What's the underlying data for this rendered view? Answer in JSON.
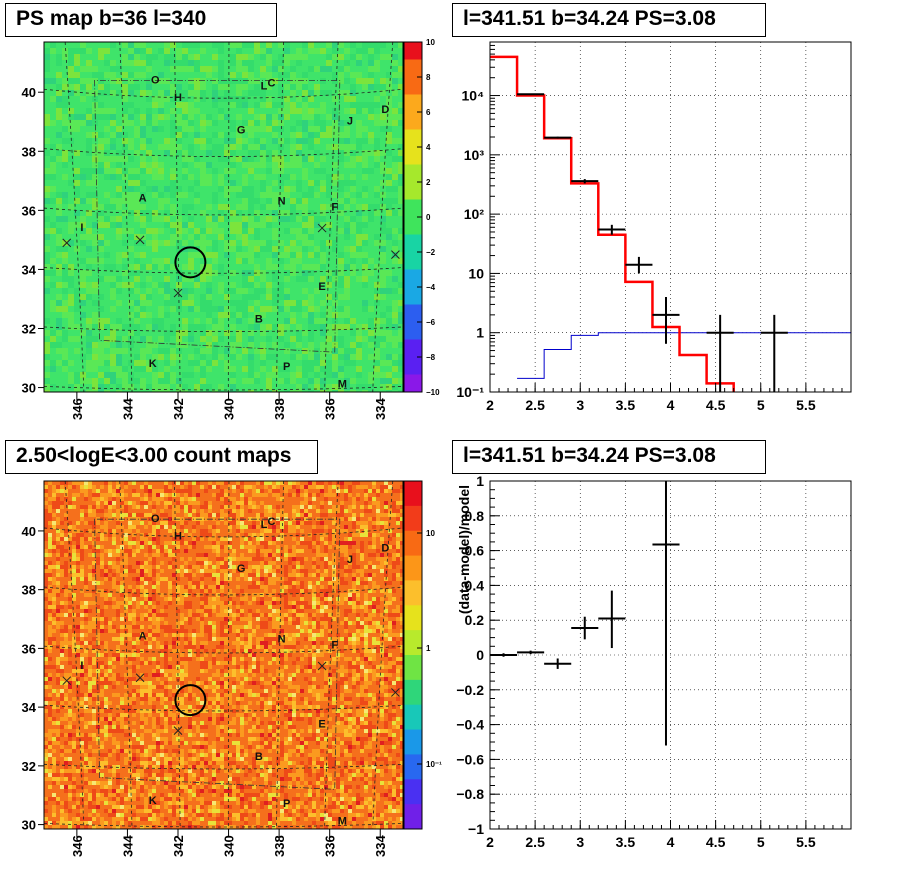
{
  "titles": {
    "tl": "PS map b=36 l=340",
    "tr": "l=341.51 b=34.24 PS=3.08",
    "bl": "2.50<logE<3.00 count maps",
    "br": "l=341.51 b=34.24 PS=3.08"
  },
  "map": {
    "x_ticks": [
      "346",
      "344",
      "342",
      "340",
      "338",
      "336",
      "334"
    ],
    "y_ticks": [
      "40",
      "38",
      "36",
      "34",
      "32",
      "30"
    ],
    "markers": [
      {
        "label": "O",
        "l": 342.9,
        "b": 40.3
      },
      {
        "label": "H",
        "l": 342.0,
        "b": 39.7
      },
      {
        "label": "L",
        "l": 338.6,
        "b": 40.1
      },
      {
        "label": "C",
        "l": 338.3,
        "b": 40.2
      },
      {
        "label": "D",
        "l": 333.8,
        "b": 39.3
      },
      {
        "label": "J",
        "l": 335.2,
        "b": 38.9
      },
      {
        "label": "G",
        "l": 339.5,
        "b": 38.6
      },
      {
        "label": "A",
        "l": 343.4,
        "b": 36.3
      },
      {
        "label": "N",
        "l": 337.9,
        "b": 36.2
      },
      {
        "label": "F",
        "l": 335.8,
        "b": 36.0
      },
      {
        "label": "I",
        "l": 345.8,
        "b": 35.3
      },
      {
        "label": "E",
        "l": 336.3,
        "b": 33.3
      },
      {
        "label": "B",
        "l": 338.8,
        "b": 32.2
      },
      {
        "label": "K",
        "l": 343.0,
        "b": 30.7
      },
      {
        "label": "P",
        "l": 337.7,
        "b": 30.6
      },
      {
        "label": "M",
        "l": 335.5,
        "b": 30.0
      }
    ],
    "crosses": [
      {
        "l": 346.4,
        "b": 34.9
      },
      {
        "l": 343.5,
        "b": 35.0
      },
      {
        "l": 342.0,
        "b": 33.2
      },
      {
        "l": 336.3,
        "b": 35.4
      },
      {
        "l": 333.4,
        "b": 34.5
      }
    ],
    "source": {
      "l": 341.51,
      "b": 34.24
    }
  },
  "colorbar_ps": {
    "labels": [
      "10",
      "8",
      "6",
      "4",
      "2",
      "0",
      "−2",
      "−4",
      "−6",
      "−8",
      "−10"
    ],
    "colors": [
      "#e8101c",
      "#f86a14",
      "#fca91c",
      "#e6e21c",
      "#a6e82c",
      "#3fe45c",
      "#18d4a4",
      "#1aa8e4",
      "#2c5ef0",
      "#5a20f2",
      "#8a18e8"
    ]
  },
  "colorbar_counts": {
    "labels": [
      "10",
      "1",
      "10⁻¹"
    ]
  },
  "chart_data": [
    {
      "type": "line",
      "title": "l=341.51 b=34.24 PS=3.08",
      "xlabel": "",
      "ylabel": "",
      "xlim": [
        2,
        6
      ],
      "ylim": [
        0.1,
        80000
      ],
      "y_scale": "log",
      "x_ticks": [
        "2",
        "2.5",
        "3",
        "3.5",
        "4",
        "4.5",
        "5",
        "5.5"
      ],
      "y_ticks": [
        "10⁻¹",
        "1",
        "10",
        "10²",
        "10³",
        "10⁴"
      ],
      "grid": true,
      "series": [
        {
          "style": "step",
          "color": "#ff0000",
          "edges": [
            2.0,
            2.3,
            2.6,
            2.9,
            3.2,
            3.5,
            3.8,
            4.1,
            4.4,
            4.7
          ],
          "values": [
            45000,
            10000,
            1900,
            330,
            45,
            7.2,
            1.25,
            0.42,
            0.14
          ]
        },
        {
          "style": "step",
          "color": "#0000cc",
          "edges": [
            2.3,
            2.6,
            2.9,
            3.2,
            3.5,
            3.8,
            4.4,
            6.0
          ],
          "values": [
            0.17,
            0.52,
            0.9,
            1.0,
            1.0,
            1.0,
            1.0
          ]
        },
        {
          "style": "errorbar",
          "color": "#000000",
          "points": [
            {
              "x": 2.45,
              "xerr": 0.15,
              "y": 10500,
              "ylo": 10200,
              "yhi": 10800
            },
            {
              "x": 2.75,
              "xerr": 0.15,
              "y": 1950,
              "ylo": 1880,
              "yhi": 2020
            },
            {
              "x": 3.05,
              "xerr": 0.15,
              "y": 360,
              "ylo": 330,
              "yhi": 390
            },
            {
              "x": 3.35,
              "xerr": 0.15,
              "y": 55,
              "ylo": 45,
              "yhi": 66
            },
            {
              "x": 3.65,
              "xerr": 0.15,
              "y": 14,
              "ylo": 10,
              "yhi": 19
            },
            {
              "x": 3.95,
              "xerr": 0.15,
              "y": 2.0,
              "ylo": 0.65,
              "yhi": 4.0
            },
            {
              "x": 4.55,
              "xerr": 0.15,
              "y": 1.0,
              "ylo": 0.1,
              "yhi": 2.0
            },
            {
              "x": 5.15,
              "xerr": 0.15,
              "y": 1.0,
              "ylo": 0.1,
              "yhi": 2.0
            }
          ]
        }
      ]
    },
    {
      "type": "scatter",
      "title": "l=341.51 b=34.24 PS=3.08",
      "xlabel": "",
      "ylabel": "(data-model)/model",
      "xlim": [
        2,
        6
      ],
      "ylim": [
        -1,
        1
      ],
      "x_ticks": [
        "2",
        "2.5",
        "3",
        "3.5",
        "4",
        "4.5",
        "5",
        "5.5"
      ],
      "y_ticks": [
        "−1",
        "−0.8",
        "−0.6",
        "−0.4",
        "−0.2",
        "0",
        "0.2",
        "0.4",
        "0.6",
        "0.8",
        "1"
      ],
      "grid": true,
      "points": [
        {
          "x": 2.15,
          "xerr": 0.15,
          "y": 0.0,
          "ylo": -0.01,
          "yhi": 0.01
        },
        {
          "x": 2.45,
          "xerr": 0.15,
          "y": 0.015,
          "ylo": 0.005,
          "yhi": 0.025
        },
        {
          "x": 2.75,
          "xerr": 0.15,
          "y": -0.05,
          "ylo": -0.08,
          "yhi": -0.02
        },
        {
          "x": 3.05,
          "xerr": 0.15,
          "y": 0.155,
          "ylo": 0.09,
          "yhi": 0.22
        },
        {
          "x": 3.35,
          "xerr": 0.15,
          "y": 0.21,
          "ylo": 0.04,
          "yhi": 0.37
        },
        {
          "x": 3.95,
          "xerr": 0.15,
          "y": 0.635,
          "ylo": -0.52,
          "yhi": 1.0
        }
      ]
    }
  ]
}
